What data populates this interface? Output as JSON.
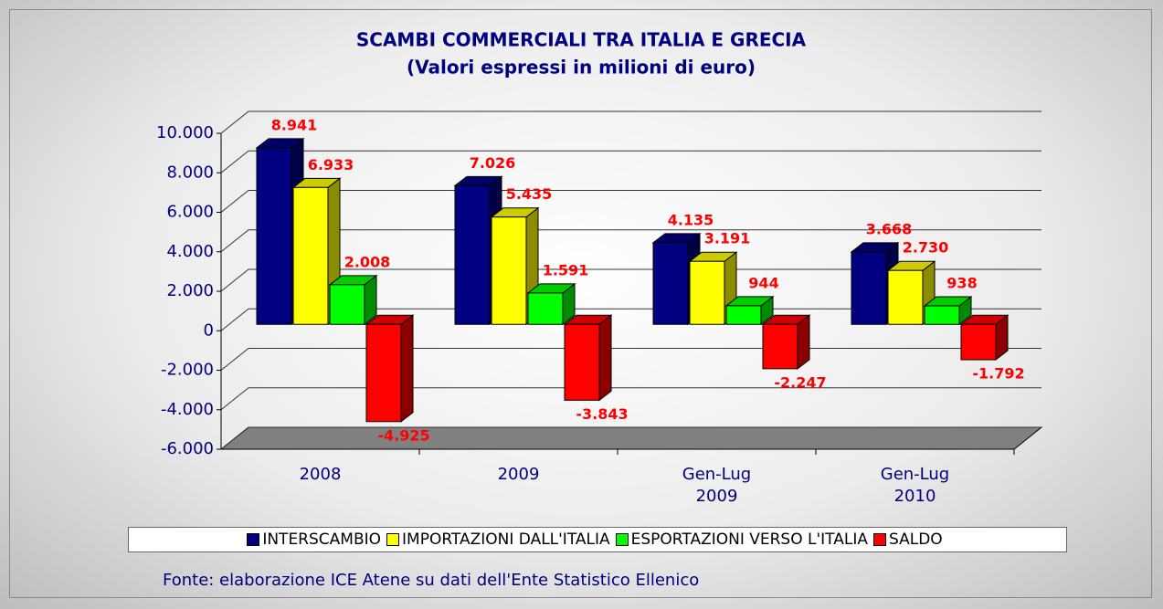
{
  "chart_data": {
    "type": "bar3d",
    "title": "SCAMBI COMMERCIALI TRA ITALIA E GRECIA",
    "subtitle": "(Valori espressi in milioni di euro)",
    "source": "Fonte: elaborazione ICE Atene su dati dell'Ente Statistico Ellenico",
    "categories": [
      "2008",
      "2009",
      "Gen-Lug 2009",
      "Gen-Lug 2010"
    ],
    "series": [
      {
        "name": "INTERSCAMBIO",
        "color": "#000080",
        "values": [
          8941,
          7026,
          4135,
          3668
        ],
        "value_labels": [
          "8.941",
          "7.026",
          "4.135",
          "3.668"
        ]
      },
      {
        "name": "IMPORTAZIONI DALL'ITALIA",
        "color": "#ffff00",
        "values": [
          6933,
          5435,
          3191,
          2730
        ],
        "value_labels": [
          "6.933",
          "5.435",
          "3.191",
          "2.730"
        ]
      },
      {
        "name": "ESPORTAZIONI VERSO L'ITALIA",
        "color": "#00ff00",
        "values": [
          2008,
          1591,
          944,
          938
        ],
        "value_labels": [
          "2.008",
          "1.591",
          "944",
          "938"
        ]
      },
      {
        "name": "SALDO",
        "color": "#ff0000",
        "values": [
          -4925,
          -3843,
          -2247,
          -1792
        ],
        "value_labels": [
          "-4.925",
          "-3.843",
          "-2.247",
          "-1.792"
        ]
      }
    ],
    "ylim": [
      -6000,
      10000
    ],
    "yticks": [
      {
        "value": -6000,
        "label": "-6.000"
      },
      {
        "value": -4000,
        "label": "-4.000"
      },
      {
        "value": -2000,
        "label": "-2.000"
      },
      0,
      {
        "value": 2000,
        "label": "2.000"
      },
      {
        "value": 4000,
        "label": "4.000"
      },
      {
        "value": 6000,
        "label": "6.000"
      },
      {
        "value": 8000,
        "label": "8.000"
      },
      {
        "value": 10000,
        "label": "10.000"
      }
    ],
    "grid": true,
    "legend": "bottom"
  }
}
